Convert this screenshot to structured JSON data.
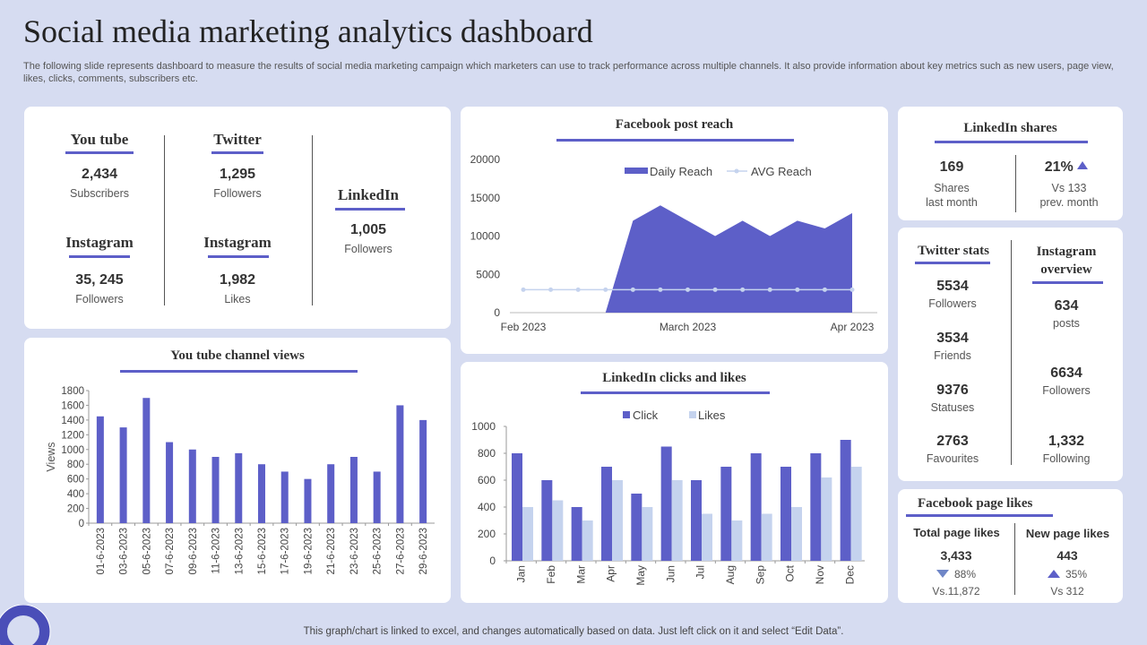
{
  "header": {
    "title": "Social media marketing analytics dashboard",
    "subtitle": "The following slide represents dashboard to measure the results of  social media marketing campaign which marketers can use to track performance across multiple channels. It also provide information about key metrics such as new users, page view, likes, clicks, comments, subscribers etc."
  },
  "channels": {
    "youtube": {
      "name": "You tube",
      "value": "2,434",
      "label": "Subscribers"
    },
    "twitter": {
      "name": "Twitter",
      "value": "1,295",
      "label": "Followers"
    },
    "linkedin": {
      "name": "LinkedIn",
      "value": "1,005",
      "label": "Followers"
    },
    "instagram_followers": {
      "name": "Instagram",
      "value": "35, 245",
      "label": "Followers"
    },
    "instagram_likes": {
      "name": "Instagram",
      "value": "1,982",
      "label": "Likes"
    }
  },
  "linkedin_shares": {
    "title": "LinkedIn  shares",
    "shares_value": "169",
    "shares_label_1": "Shares",
    "shares_label_2": "last month",
    "pct_value": "21%",
    "pct_label_1": "Vs 133",
    "pct_label_2": "prev.  month"
  },
  "twitter_stats": {
    "title": "Twitter  stats",
    "items": [
      {
        "value": "5534",
        "label": "Followers"
      },
      {
        "value": "3534",
        "label": "Friends"
      },
      {
        "value": "9376",
        "label": "Statuses"
      },
      {
        "value": "2763",
        "label": "Favourites"
      }
    ]
  },
  "instagram_overview": {
    "title_1": "Instagram",
    "title_2": "overview",
    "items": [
      {
        "value": "634",
        "label": "posts"
      },
      {
        "value": "6634",
        "label": "Followers"
      },
      {
        "value": "1,332",
        "label": "Following"
      }
    ]
  },
  "facebook_page_likes": {
    "title": "Facebook page likes",
    "total_label": "Total page likes",
    "total_value": "3,433",
    "total_pct": "88%",
    "total_vs": "Vs.11,872",
    "new_label": "New page likes",
    "new_value": "443",
    "new_pct": "35%",
    "new_vs": "Vs 312"
  },
  "footer": "This graph/chart is linked to excel,  and changes automatically based on data.  Just left click on it and select “Edit Data”.",
  "colors": {
    "primary": "#5d5fc8",
    "light": "#c5d3ee",
    "background": "#d6dcf1"
  },
  "chart_data": [
    {
      "id": "facebook",
      "type": "area",
      "title": "Facebook post reach",
      "x_labels": [
        "Feb 2023",
        "March 2023",
        "Apr 2023"
      ],
      "ylim": [
        0,
        20000
      ],
      "yticks": [
        0,
        5000,
        10000,
        15000,
        20000
      ],
      "series": [
        {
          "name": "Daily Reach",
          "values": [
            0,
            0,
            0,
            0,
            12000,
            14000,
            12000,
            10000,
            12000,
            10000,
            12000,
            11000,
            13000
          ]
        },
        {
          "name": "AVG Reach",
          "values": [
            3000,
            3000,
            3000,
            3000,
            3000,
            3000,
            3000,
            3000,
            3000,
            3000,
            3000,
            3000,
            3000
          ]
        }
      ]
    },
    {
      "id": "youtube",
      "type": "bar",
      "title": "You tube channel views",
      "ylabel": "Views",
      "ylim": [
        0,
        1800
      ],
      "yticks": [
        0,
        200,
        400,
        600,
        800,
        1000,
        1200,
        1400,
        1600,
        1800
      ],
      "categories": [
        "01-6-2023",
        "03-6-2023",
        "05-6-2023",
        "07-6-2023",
        "09-6-2023",
        "11-6-2023",
        "13-6-2023",
        "15-6-2023",
        "17-6-2023",
        "19-6-2023",
        "21-6-2023",
        "23-6-2023",
        "25-6-2023",
        "27-6-2023",
        "29-6-2023"
      ],
      "values": [
        1450,
        1300,
        1700,
        1100,
        1000,
        900,
        950,
        800,
        700,
        600,
        800,
        900,
        700,
        1600,
        1400
      ]
    },
    {
      "id": "linkedin",
      "type": "bar",
      "title": "LinkedIn  clicks and likes",
      "ylim": [
        0,
        1000
      ],
      "yticks": [
        0,
        200,
        400,
        600,
        800,
        1000
      ],
      "categories": [
        "Jan",
        "Feb",
        "Mar",
        "Apr",
        "May",
        "Jun",
        "Jul",
        "Aug",
        "Sep",
        "Oct",
        "Nov",
        "Dec"
      ],
      "series": [
        {
          "name": "Click",
          "values": [
            800,
            600,
            400,
            700,
            500,
            850,
            600,
            700,
            800,
            700,
            800,
            900
          ]
        },
        {
          "name": "Likes",
          "values": [
            400,
            450,
            300,
            600,
            400,
            600,
            350,
            300,
            350,
            400,
            620,
            700
          ]
        }
      ]
    }
  ]
}
